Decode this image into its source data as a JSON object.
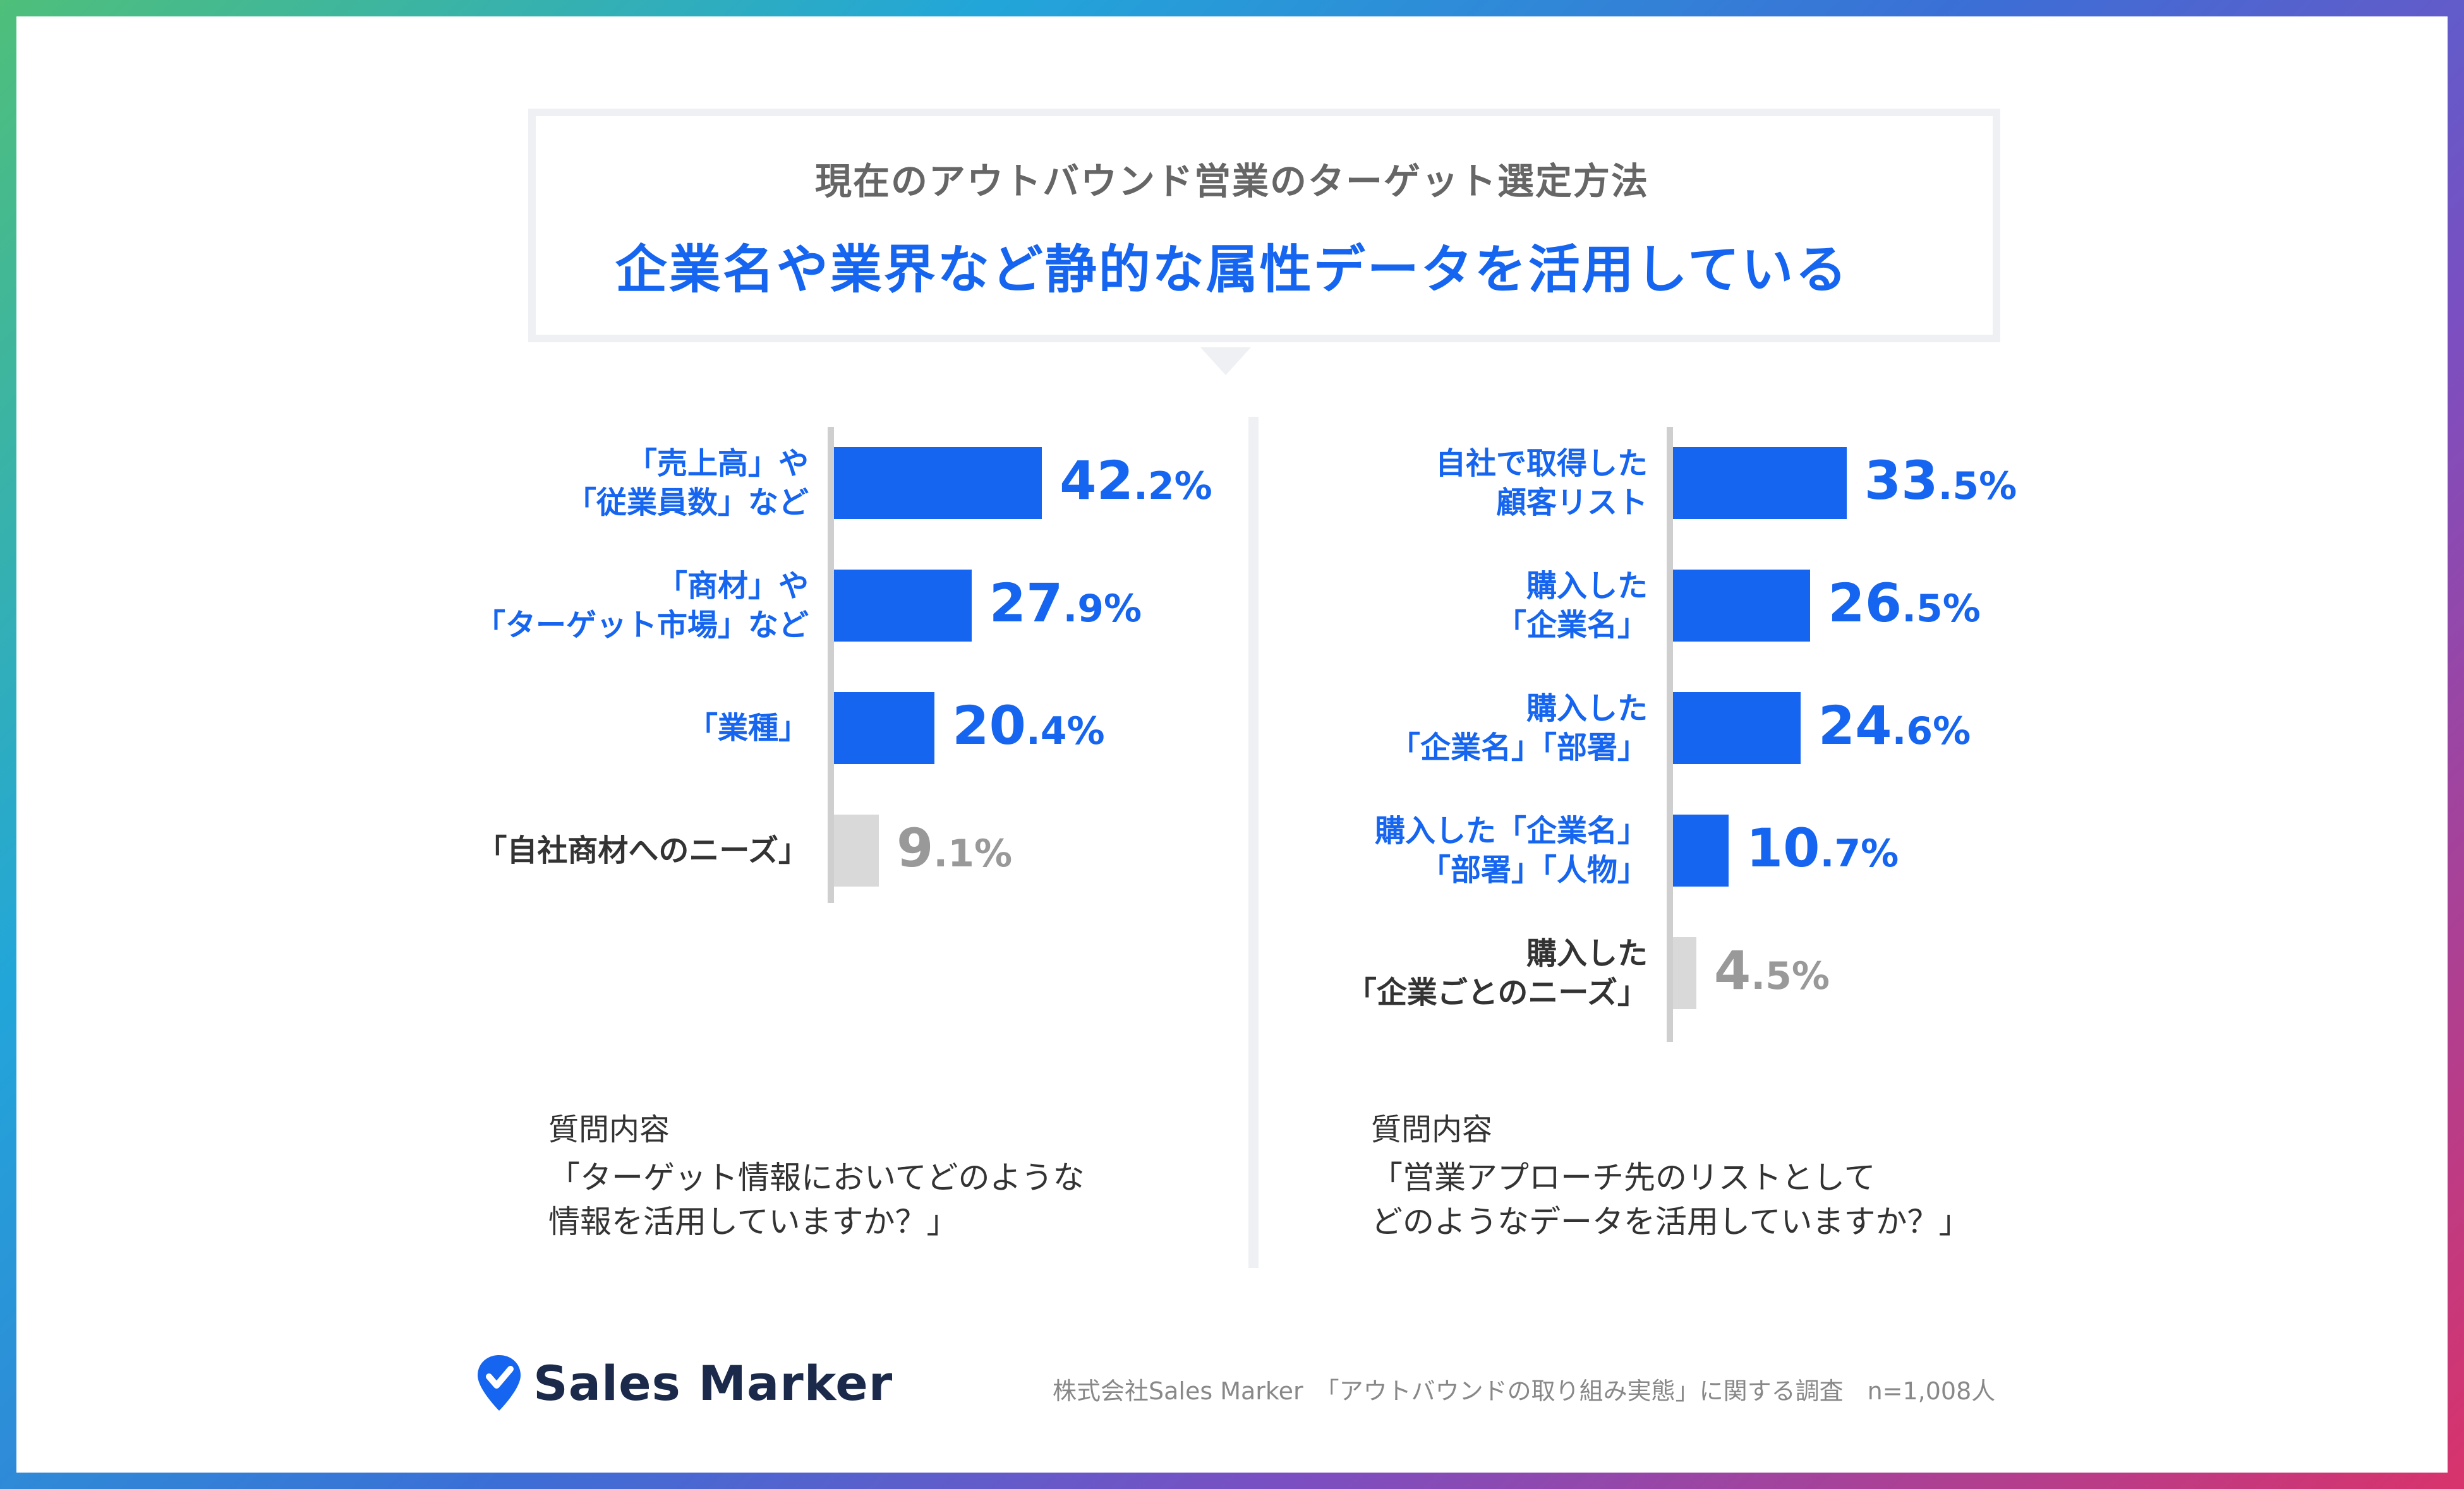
{
  "header": {
    "subtitle": "現在のアウトバウンド営業のターゲット選定方法",
    "title": "企業名や業界など静的な属性データを活用している"
  },
  "colors": {
    "accent": "#1565f0",
    "muted_bar": "#d9d9d9",
    "muted_text": "#999999",
    "label_dark": "#333333"
  },
  "chart_data": [
    {
      "type": "bar",
      "orientation": "horizontal",
      "categories": [
        "「売上高」や\n「従業員数」など",
        "「商材」や\n「ターゲット市場」など",
        "「業種」",
        "「自社商材へのニーズ」"
      ],
      "values": [
        42.2,
        27.9,
        20.4,
        9.1
      ],
      "value_labels": [
        {
          "int": "42",
          "dec": ".2%"
        },
        {
          "int": "27",
          "dec": ".9%"
        },
        {
          "int": "20",
          "dec": ".4%"
        },
        {
          "int": "9",
          "dec": ".1%"
        }
      ],
      "highlight": [
        true,
        true,
        true,
        false
      ],
      "xlim": [
        0,
        100
      ]
    },
    {
      "type": "bar",
      "orientation": "horizontal",
      "categories": [
        "自社で取得した\n顧客リスト",
        "購入した\n「企業名」",
        "購入した\n「企業名」「部署」",
        "購入した「企業名」\n「部署」「人物」",
        "購入した\n「企業ごとのニーズ」"
      ],
      "values": [
        33.5,
        26.5,
        24.6,
        10.7,
        4.5
      ],
      "value_labels": [
        {
          "int": "33",
          "dec": ".5%"
        },
        {
          "int": "26",
          "dec": ".5%"
        },
        {
          "int": "24",
          "dec": ".6%"
        },
        {
          "int": "10",
          "dec": ".7%"
        },
        {
          "int": "4",
          "dec": ".5%"
        }
      ],
      "highlight": [
        true,
        true,
        true,
        true,
        false
      ],
      "xlim": [
        0,
        100
      ]
    }
  ],
  "questions": [
    {
      "heading": "質問内容",
      "text": "「ターゲット情報においてどのような\n情報を活用していますか？」"
    },
    {
      "heading": "質問内容",
      "text": "「営業アプローチ先のリストとして\nどのようなデータを活用していますか？」"
    }
  ],
  "footer": {
    "brand": "Sales Marker",
    "source": "株式会社Sales Marker　「アウトバウンドの取り組み実態」に関する調査　n=1,008人"
  }
}
